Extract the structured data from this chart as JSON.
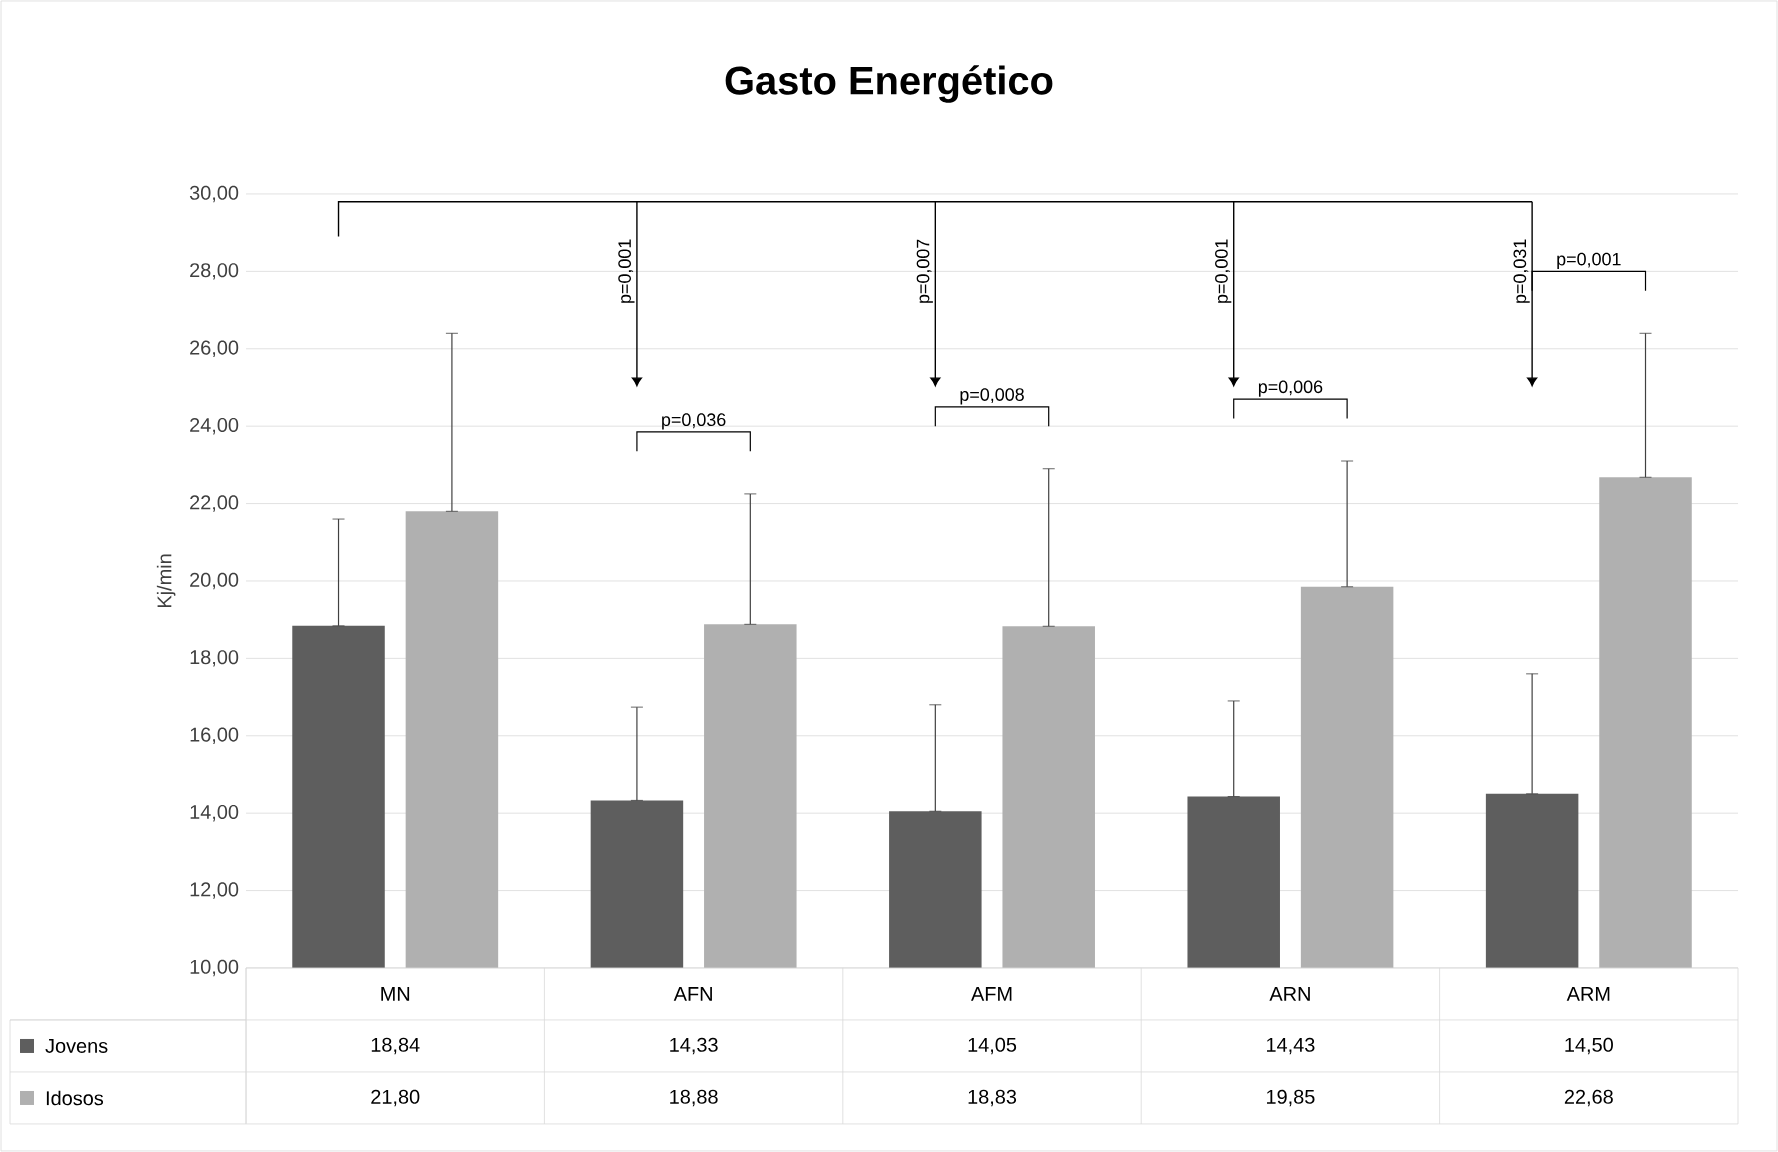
{
  "chart_data": {
    "type": "bar",
    "title": "Gasto Energético",
    "ylabel": "Kj/min",
    "categories": [
      "MN",
      "AFN",
      "AFM",
      "ARN",
      "ARM"
    ],
    "series": [
      {
        "name": "Jovens",
        "color": "#5e5e5e",
        "values": [
          18.84,
          14.33,
          14.05,
          14.43,
          14.5
        ],
        "value_labels": [
          "18,84",
          "14,33",
          "14,05",
          "14,43",
          "14,50"
        ],
        "errors": [
          [
            18.84,
            21.6
          ],
          [
            14.33,
            16.74
          ],
          [
            14.05,
            16.8
          ],
          [
            14.43,
            16.9
          ],
          [
            14.5,
            17.6
          ]
        ]
      },
      {
        "name": "Idosos",
        "color": "#b0b0b0",
        "values": [
          21.8,
          18.88,
          18.83,
          19.85,
          22.68
        ],
        "value_labels": [
          "21,80",
          "18,88",
          "18,83",
          "19,85",
          "22,68"
        ],
        "errors": [
          [
            21.8,
            26.4
          ],
          [
            18.88,
            22.25
          ],
          [
            18.83,
            22.9
          ],
          [
            19.85,
            23.1
          ],
          [
            22.68,
            26.4
          ]
        ]
      }
    ],
    "ylim": [
      10,
      30
    ],
    "yticks": [
      {
        "value": 10,
        "label": "10,00"
      },
      {
        "value": 12,
        "label": "12,00"
      },
      {
        "value": 14,
        "label": "14,00"
      },
      {
        "value": 16,
        "label": "16,00"
      },
      {
        "value": 18,
        "label": "18,00"
      },
      {
        "value": 20,
        "label": "20,00"
      },
      {
        "value": 22,
        "label": "22,00"
      },
      {
        "value": 24,
        "label": "24,00"
      },
      {
        "value": 26,
        "label": "26,00"
      },
      {
        "value": 28,
        "label": "28,00"
      },
      {
        "value": 30,
        "label": "30,00"
      }
    ],
    "grid": "y",
    "legend": "bottom",
    "annotations": [
      "p=0,001",
      "p=0,007",
      "p=0,001",
      "p=0,031",
      "p=0,036",
      "p=0,008",
      "p=0,006",
      "p=0,001"
    ]
  }
}
